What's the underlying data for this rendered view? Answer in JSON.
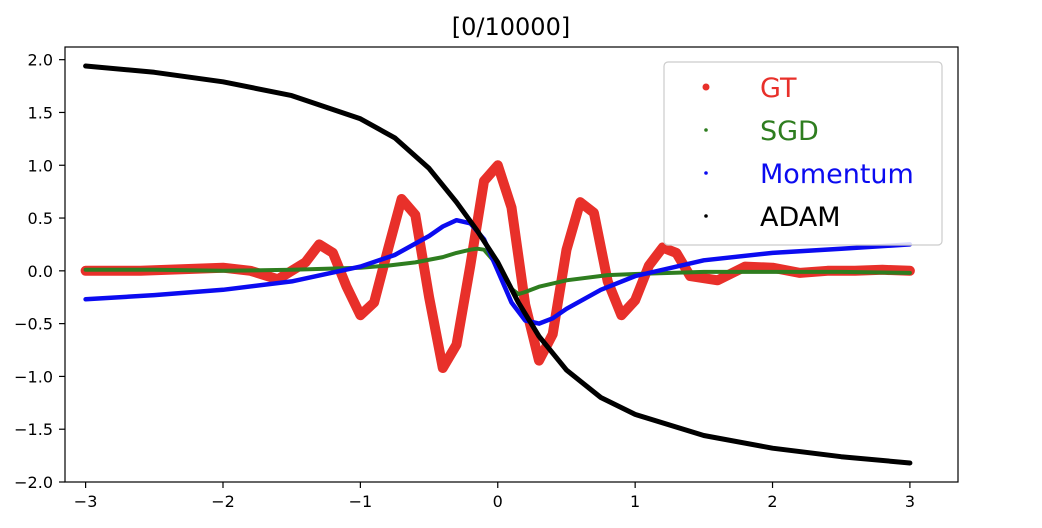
{
  "chart_data": {
    "type": "scatter",
    "title": "[0/10000]",
    "xlabel": "",
    "ylabel": "",
    "xlim": [
      -3.15,
      3.35
    ],
    "ylim": [
      -2.0,
      2.12
    ],
    "xticks": [
      "−3",
      "−2",
      "−1",
      "0",
      "1",
      "2",
      "3"
    ],
    "xtick_values": [
      -3,
      -2,
      -1,
      0,
      1,
      2,
      3
    ],
    "yticks": [
      "−2.0",
      "−1.5",
      "−1.0",
      "−0.5",
      "0.0",
      "0.5",
      "1.0",
      "1.5",
      "2.0"
    ],
    "ytick_values": [
      -2.0,
      -1.5,
      -1.0,
      -0.5,
      0.0,
      0.5,
      1.0,
      1.5,
      2.0
    ],
    "grid": false,
    "legend_position": "top-right",
    "series": [
      {
        "name": "GT",
        "color": "#e8302a",
        "x": [
          -3.0,
          -2.8,
          -2.6,
          -2.4,
          -2.2,
          -2.0,
          -1.8,
          -1.6,
          -1.4,
          -1.3,
          -1.2,
          -1.1,
          -1.0,
          -0.9,
          -0.8,
          -0.7,
          -0.6,
          -0.5,
          -0.4,
          -0.3,
          -0.2,
          -0.1,
          0.0,
          0.1,
          0.2,
          0.3,
          0.4,
          0.5,
          0.6,
          0.7,
          0.8,
          0.9,
          1.0,
          1.1,
          1.2,
          1.3,
          1.4,
          1.6,
          1.8,
          2.0,
          2.2,
          2.4,
          2.6,
          2.8,
          3.0
        ],
        "y": [
          0.0,
          0.0,
          0.0,
          0.01,
          0.02,
          0.03,
          0.0,
          -0.08,
          0.08,
          0.25,
          0.17,
          -0.15,
          -0.42,
          -0.3,
          0.2,
          0.68,
          0.53,
          -0.25,
          -0.92,
          -0.7,
          0.05,
          0.85,
          1.0,
          0.6,
          -0.32,
          -0.85,
          -0.6,
          0.2,
          0.65,
          0.55,
          -0.1,
          -0.42,
          -0.28,
          0.05,
          0.22,
          0.17,
          -0.05,
          -0.09,
          0.04,
          0.03,
          -0.02,
          0.0,
          0.0,
          0.01,
          0.0
        ]
      },
      {
        "name": "SGD",
        "color": "#2e7d1f",
        "x": [
          -3.0,
          -2.5,
          -2.0,
          -1.5,
          -1.0,
          -0.8,
          -0.6,
          -0.4,
          -0.3,
          -0.2,
          -0.15,
          -0.1,
          0.0,
          0.1,
          0.15,
          0.2,
          0.3,
          0.5,
          0.8,
          1.0,
          1.5,
          2.0,
          2.5,
          3.0
        ],
        "y": [
          0.01,
          0.01,
          0.0,
          0.01,
          0.03,
          0.05,
          0.08,
          0.13,
          0.17,
          0.2,
          0.21,
          0.2,
          0.05,
          -0.17,
          -0.22,
          -0.2,
          -0.15,
          -0.09,
          -0.04,
          -0.03,
          -0.01,
          -0.01,
          -0.01,
          -0.02
        ]
      },
      {
        "name": "Momentum",
        "color": "#0b0bf0",
        "x": [
          -3.0,
          -2.5,
          -2.0,
          -1.5,
          -1.0,
          -0.75,
          -0.5,
          -0.4,
          -0.3,
          -0.2,
          -0.1,
          0.0,
          0.1,
          0.2,
          0.3,
          0.4,
          0.5,
          0.75,
          1.0,
          1.5,
          2.0,
          2.5,
          3.0
        ],
        "y": [
          -0.27,
          -0.23,
          -0.18,
          -0.1,
          0.04,
          0.15,
          0.33,
          0.42,
          0.48,
          0.45,
          0.3,
          0.0,
          -0.3,
          -0.47,
          -0.5,
          -0.45,
          -0.36,
          -0.18,
          -0.05,
          0.1,
          0.17,
          0.21,
          0.25
        ]
      },
      {
        "name": "ADAM",
        "color": "#000000",
        "x": [
          -3.0,
          -2.5,
          -2.0,
          -1.5,
          -1.0,
          -0.75,
          -0.5,
          -0.3,
          -0.15,
          0.0,
          0.15,
          0.3,
          0.5,
          0.75,
          1.0,
          1.5,
          2.0,
          2.5,
          3.0
        ],
        "y": [
          1.94,
          1.88,
          1.79,
          1.66,
          1.44,
          1.26,
          0.97,
          0.65,
          0.38,
          0.08,
          -0.3,
          -0.62,
          -0.94,
          -1.2,
          -1.36,
          -1.56,
          -1.68,
          -1.76,
          -1.82
        ]
      }
    ]
  }
}
